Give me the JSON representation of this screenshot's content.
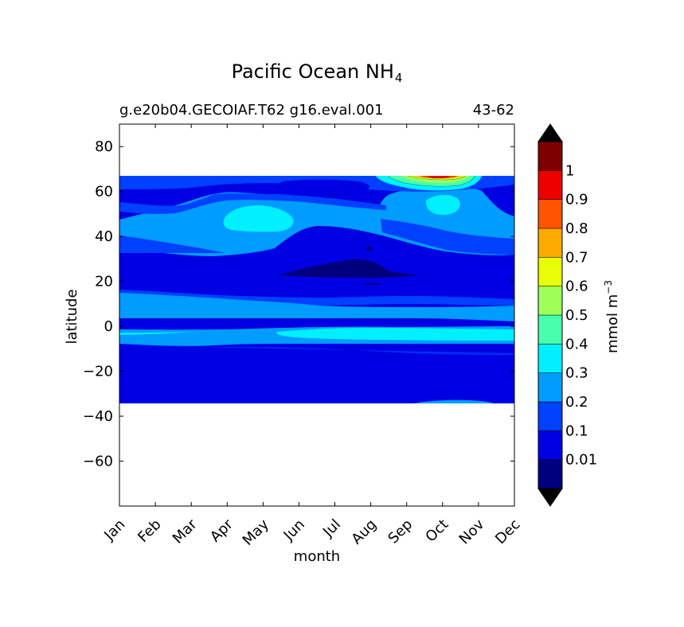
{
  "chart_data": {
    "type": "contour",
    "title": "Pacific Ocean NH",
    "title_subscript": "4",
    "subtitle_left": "g.e20b04.GECOIAF.T62 g16.eval.001",
    "subtitle_right": "43-62",
    "xlabel": "month",
    "ylabel": "latitude",
    "x_categories": [
      "Jan",
      "Feb",
      "Mar",
      "Apr",
      "May",
      "Jun",
      "Jul",
      "Aug",
      "Sep",
      "Oct",
      "Nov",
      "Dec"
    ],
    "x_tick_rotation_deg": 45,
    "ylim": [
      -80,
      90
    ],
    "yticks": [
      80,
      60,
      40,
      20,
      0,
      -20,
      -40,
      -60
    ],
    "ytick_labels": [
      "80",
      "60",
      "40",
      "20",
      "0",
      "−20",
      "−40",
      "−60"
    ],
    "data_extent_latitude": [
      -34,
      67
    ],
    "colorbar": {
      "label": "mmol m",
      "label_superscript": "−3",
      "levels": [
        0,
        0.01,
        0.1,
        0.2,
        0.3,
        0.4,
        0.5,
        0.6,
        0.7,
        0.8,
        0.9,
        1,
        1.1
      ],
      "tick_values": [
        0.01,
        0.1,
        0.2,
        0.3,
        0.4,
        0.5,
        0.6,
        0.7,
        0.8,
        0.9,
        1
      ],
      "tick_labels": [
        "0.01",
        "0.1",
        "0.2",
        "0.3",
        "0.4",
        "0.5",
        "0.6",
        "0.7",
        "0.8",
        "0.9",
        "1"
      ],
      "colors": [
        "#00007f",
        "#0000e2",
        "#0040ff",
        "#009cff",
        "#00f0ff",
        "#48ffad",
        "#9cff5a",
        "#e8ff06",
        "#ffaa00",
        "#ff5400",
        "#ed0000",
        "#7f0000"
      ],
      "extend": "both",
      "extend_color": "#000000"
    },
    "zonal_bands": [
      {
        "lat_from": 67,
        "lat_to": 57,
        "level": 0.1
      },
      {
        "lat_from": 57,
        "lat_to": 44,
        "level": 0.1
      },
      {
        "lat_from": 44,
        "lat_to": 35,
        "level": 0.2
      },
      {
        "lat_from": 35,
        "lat_to": 27,
        "level": 0.1
      },
      {
        "lat_from": 27,
        "lat_to": 15,
        "level": 0.1
      },
      {
        "lat_from": 15,
        "lat_to": 4,
        "level": 0.2
      },
      {
        "lat_from": 4,
        "lat_to": 0,
        "level": 0.1
      },
      {
        "lat_from": 0,
        "lat_to": -7,
        "level": 0.2
      },
      {
        "lat_from": -7,
        "lat_to": -10,
        "level": 0.1
      },
      {
        "lat_from": -10,
        "lat_to": -34,
        "level": 0.1
      }
    ],
    "features": [
      {
        "kind": "minimum",
        "month_center": "Jul",
        "lat_center": 24,
        "level": 0.01
      },
      {
        "kind": "maximum",
        "month_center": "May",
        "lat_center": 47,
        "level": 0.3
      },
      {
        "kind": "maximum",
        "month_center": "Oct",
        "lat_center": 66,
        "level": 1.1
      },
      {
        "kind": "maximum",
        "month_center": "Oct",
        "lat_center": 54,
        "level": 0.3
      },
      {
        "kind": "band",
        "month_range": [
          "Jul",
          "Dec"
        ],
        "lat_center": -4,
        "level": 0.3
      }
    ]
  }
}
